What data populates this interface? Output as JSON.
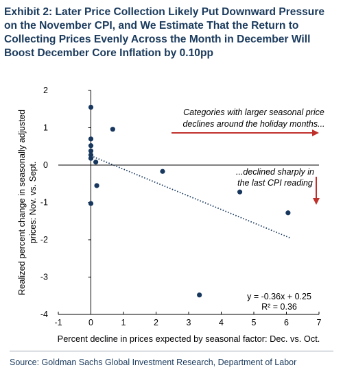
{
  "title": "Exhibit 2: Later Price Collection Likely Put Downward Pressure on the November CPI, and We Estimate That the Return to Collecting Prices Evenly Across the Month in December Will Boost December Core Inflation by 0.10pp",
  "source": "Source: Goldman Sachs Global Investment Research, Department of Labor",
  "colors": {
    "marker": "#17375e",
    "trendline": "#17375e",
    "arrow": "#c0302b",
    "title": "#1a3a5c"
  },
  "chart_data": {
    "type": "scatter",
    "xlabel": "Percent decline in prices expected by seasonal factor: Dec. vs. Oct.",
    "ylabel": "Realized percent change in seasonally adjusted prices: Nov. vs. Sept.",
    "xlim": [
      -1,
      7
    ],
    "ylim": [
      -4,
      2
    ],
    "xticks": [
      "-1",
      "0",
      "1",
      "2",
      "3",
      "4",
      "5",
      "6",
      "7"
    ],
    "yticks": [
      "-4",
      "-3",
      "-2",
      "-1",
      "0",
      "1",
      "2"
    ],
    "grid": false,
    "points": [
      {
        "x": 0.0,
        "y": 1.55
      },
      {
        "x": 0.0,
        "y": 0.7
      },
      {
        "x": 0.0,
        "y": 0.52
      },
      {
        "x": 0.0,
        "y": 0.38
      },
      {
        "x": 0.0,
        "y": 0.27
      },
      {
        "x": 0.0,
        "y": 0.18
      },
      {
        "x": 0.0,
        "y": -1.03
      },
      {
        "x": 0.15,
        "y": 0.08
      },
      {
        "x": 0.18,
        "y": -0.55
      },
      {
        "x": 0.67,
        "y": 0.96
      },
      {
        "x": 2.2,
        "y": -0.17
      },
      {
        "x": 3.33,
        "y": -3.48
      },
      {
        "x": 4.57,
        "y": -0.72
      },
      {
        "x": 6.05,
        "y": -1.28
      }
    ],
    "trendline": {
      "slope": -0.36,
      "intercept": 0.25,
      "x_range": [
        0,
        6.1
      ]
    },
    "annotations": {
      "arrow_text": [
        "Categories with larger seasonal price",
        "declines around the holiday months..."
      ],
      "drop_text": [
        "...declined sharply in",
        "the last CPI reading"
      ],
      "equation": "y = -0.36x + 0.25",
      "r_squared": "R² = 0.36"
    }
  }
}
